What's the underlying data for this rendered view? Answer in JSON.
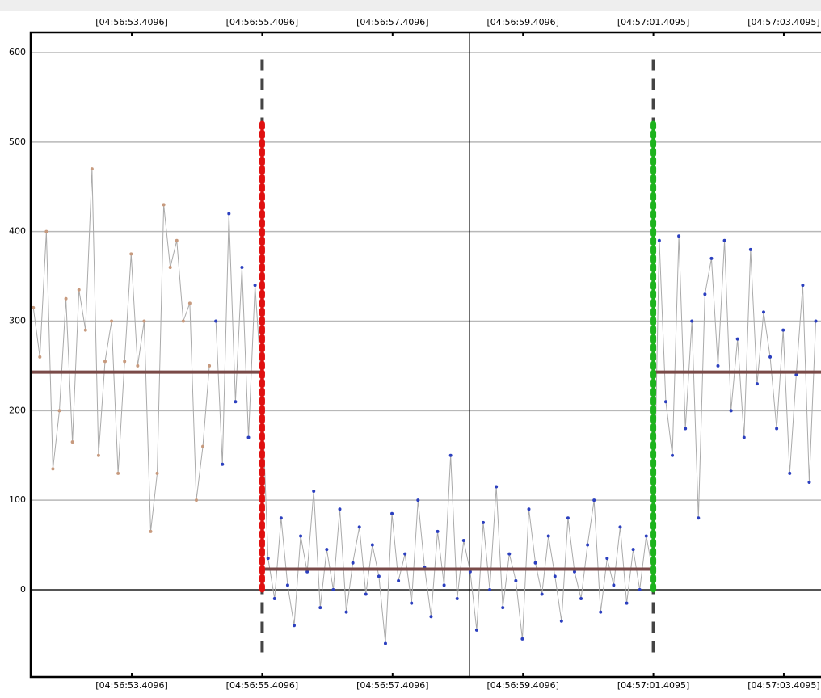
{
  "chart_data": {
    "type": "scatter",
    "xlim": [
      51.86,
      63.98
    ],
    "ylim": [
      -97.5,
      622.6
    ],
    "yticks": [
      0,
      100,
      200,
      300,
      400,
      500,
      600
    ],
    "xticks": [
      {
        "value": 53.4096,
        "label": "[04:56:53.4096]"
      },
      {
        "value": 55.4096,
        "label": "[04:56:55.4096]"
      },
      {
        "value": 57.4096,
        "label": "[04:56:57.4096]"
      },
      {
        "value": 59.4096,
        "label": "[04:56:59.4096]"
      },
      {
        "value": 61.4095,
        "label": "[04:57:01.4095]"
      },
      {
        "value": 63.4095,
        "label": "[04:57:03.4095]"
      }
    ],
    "grid": true,
    "line_color": "#aaaaaa",
    "series": [
      {
        "color": "#c79a7e",
        "x": [
          51.9,
          52.0,
          52.1,
          52.2,
          52.3,
          52.4,
          52.5,
          52.6,
          52.7,
          52.8,
          52.9,
          53.0,
          53.1,
          53.2,
          53.3,
          53.4,
          53.5,
          53.6,
          53.7,
          53.8,
          53.9,
          54.0,
          54.1,
          54.2,
          54.3,
          54.4,
          54.5,
          54.6
        ],
        "values": [
          315,
          260,
          400,
          135,
          200,
          325,
          165,
          335,
          290,
          470,
          150,
          255,
          300,
          130,
          255,
          375,
          250,
          300,
          65,
          130,
          430,
          360,
          390,
          300,
          320,
          100,
          160,
          250
        ]
      },
      {
        "color": "#2b3fbf",
        "x": [
          54.7,
          54.8,
          54.9,
          55.0,
          55.1,
          55.2,
          55.3,
          55.4,
          55.5,
          55.6,
          55.7,
          55.8,
          55.9,
          56.0,
          56.1,
          56.2,
          56.3,
          56.4,
          56.5,
          56.6,
          56.7,
          56.8,
          56.9,
          57.0,
          57.1,
          57.2,
          57.3,
          57.4,
          57.5,
          57.6,
          57.7,
          57.8,
          57.9,
          58.0,
          58.1,
          58.2,
          58.3,
          58.4,
          58.5,
          58.6,
          58.7,
          58.8,
          58.9,
          59.0,
          59.1,
          59.2,
          59.3,
          59.4,
          59.5,
          59.6,
          59.7,
          59.8,
          59.9,
          60.0,
          60.1,
          60.2,
          60.3,
          60.4,
          60.5,
          60.6,
          60.7,
          60.8,
          60.9,
          61.0,
          61.1,
          61.2,
          61.3,
          61.4,
          61.5,
          61.6,
          61.7,
          61.8,
          61.9,
          62.0,
          62.1,
          62.2,
          62.3,
          62.4,
          62.5,
          62.6,
          62.7,
          62.8,
          62.9,
          63.0,
          63.1,
          63.2,
          63.3,
          63.4,
          63.5,
          63.6,
          63.7,
          63.8,
          63.9
        ],
        "values": [
          300,
          140,
          420,
          210,
          360,
          170,
          340,
          230,
          35,
          -10,
          80,
          5,
          -40,
          60,
          20,
          110,
          -20,
          45,
          0,
          90,
          -25,
          30,
          70,
          -5,
          50,
          15,
          -60,
          85,
          10,
          40,
          -15,
          100,
          25,
          -30,
          65,
          5,
          150,
          -10,
          55,
          20,
          -45,
          75,
          0,
          115,
          -20,
          40,
          10,
          -55,
          90,
          30,
          -5,
          60,
          15,
          -35,
          80,
          20,
          -10,
          50,
          100,
          -25,
          35,
          5,
          70,
          -15,
          45,
          0,
          60,
          20,
          390,
          210,
          150,
          395,
          180,
          300,
          80,
          330,
          370,
          250,
          390,
          200,
          280,
          170,
          380,
          230,
          310,
          260,
          180,
          290,
          130,
          240,
          340,
          120,
          300
        ]
      }
    ],
    "mean_lines": {
      "color": "#7a4a48",
      "segments": [
        {
          "start": 51.86,
          "end": 55.4096,
          "value": 243
        },
        {
          "start": 55.4096,
          "end": 61.4095,
          "value": 23
        },
        {
          "start": 61.4095,
          "end": 63.98,
          "value": 243
        }
      ]
    },
    "markers": {
      "dashed_range": [
        -70,
        595
      ],
      "dotted_range": [
        0,
        525
      ],
      "dashed_color": "#444444",
      "items": [
        {
          "x": 55.4096,
          "color": "#e01010"
        },
        {
          "x": 61.4095,
          "color": "#1db31d"
        }
      ]
    },
    "cursor_x": 58.59
  }
}
